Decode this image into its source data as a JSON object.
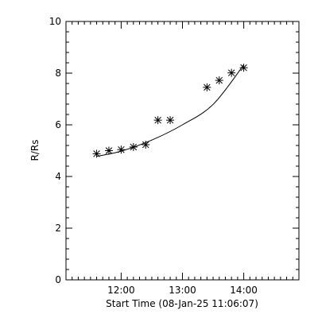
{
  "chart_data": {
    "type": "scatter",
    "xlabel": "Start Time (08-Jan-25 11:06:07)",
    "ylabel": "R/Rs",
    "xlim": [
      "11:06",
      "14:54"
    ],
    "ylim": [
      0,
      10
    ],
    "x_ticks": [
      "12:00",
      "13:00",
      "14:00"
    ],
    "y_ticks": [
      0,
      2,
      4,
      6,
      8,
      10
    ],
    "grid": false,
    "series": [
      {
        "marker": "asterisk",
        "points": [
          {
            "x": "11:36",
            "y": 4.88
          },
          {
            "x": "11:48",
            "y": 5.0
          },
          {
            "x": "12:00",
            "y": 5.04
          },
          {
            "x": "12:12",
            "y": 5.14
          },
          {
            "x": "12:24",
            "y": 5.23
          },
          {
            "x": "12:36",
            "y": 6.18
          },
          {
            "x": "12:48",
            "y": 6.18
          },
          {
            "x": "13:24",
            "y": 7.45
          },
          {
            "x": "13:36",
            "y": 7.72
          },
          {
            "x": "13:48",
            "y": 8.01
          },
          {
            "x": "14:00",
            "y": 8.21
          }
        ]
      },
      {
        "type": "line",
        "points": [
          {
            "x": "11:36",
            "y": 4.78
          },
          {
            "x": "12:00",
            "y": 4.98
          },
          {
            "x": "12:30",
            "y": 5.41
          },
          {
            "x": "13:00",
            "y": 6.0
          },
          {
            "x": "13:30",
            "y": 6.79
          },
          {
            "x": "14:00",
            "y": 8.32
          }
        ]
      }
    ],
    "colors": {
      "axis": "#000000",
      "marker": "#000000",
      "line": "#000000",
      "background": "#ffffff"
    }
  }
}
